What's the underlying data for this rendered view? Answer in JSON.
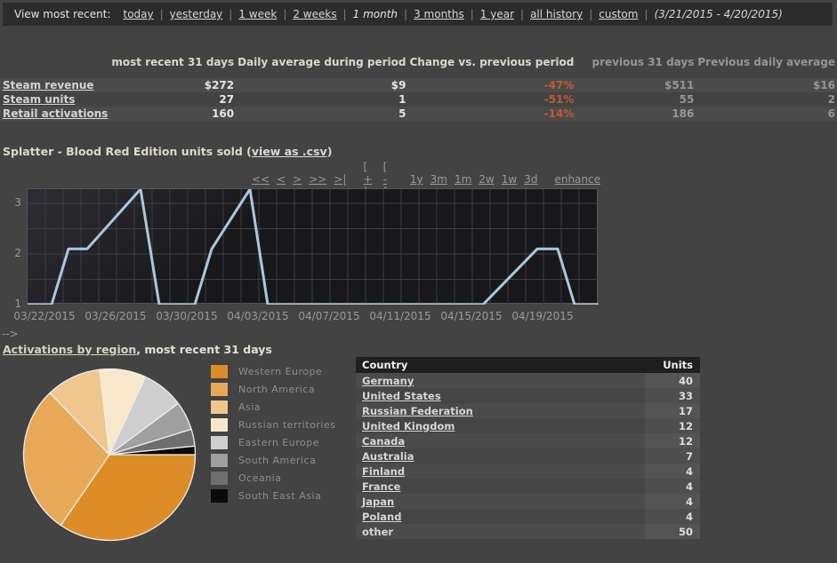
{
  "topbar": {
    "label": "View most recent:",
    "links": [
      {
        "text": "today",
        "selected": false
      },
      {
        "text": "yesterday",
        "selected": false
      },
      {
        "text": "1 week",
        "selected": false
      },
      {
        "text": "2 weeks",
        "selected": false
      },
      {
        "text": "1 month",
        "selected": true
      },
      {
        "text": "3 months",
        "selected": false
      },
      {
        "text": "1 year",
        "selected": false
      },
      {
        "text": "all history",
        "selected": false
      },
      {
        "text": "custom",
        "selected": false
      }
    ],
    "date_range": "(3/21/2015 - 4/20/2015)"
  },
  "summary_table": {
    "headers": [
      {
        "text": "most recent 31 days",
        "bright": true
      },
      {
        "text": "Daily average during period",
        "bright": true
      },
      {
        "text": "Change vs. previous period",
        "bright": true
      },
      {
        "text": "previous 31 days",
        "bright": false
      },
      {
        "text": "Previous daily average",
        "bright": false
      }
    ],
    "rows": [
      {
        "label": "Steam revenue",
        "values": [
          "$272",
          "$9",
          "-47%",
          "$511",
          "$16"
        ]
      },
      {
        "label": "Steam units",
        "values": [
          "27",
          "1",
          "-51%",
          "55",
          "2"
        ]
      },
      {
        "label": "Retail activations",
        "values": [
          "160",
          "5",
          "-14%",
          "186",
          "6"
        ]
      }
    ]
  },
  "chart_section": {
    "title_prefix": "Splatter - Blood Red Edition units sold (",
    "csv_link": "view as .csv",
    "title_suffix": ")",
    "control_groups": [
      [
        "<<",
        "<",
        ">",
        ">>",
        ">|"
      ],
      [
        "[ + ]",
        "[ - ]"
      ],
      [
        "1y",
        "3m",
        "1m",
        "2w",
        "1w",
        "3d"
      ],
      [
        "enhance"
      ]
    ]
  },
  "arrow_text": "-->",
  "regions_heading": {
    "link": "Activations by region",
    "suffix": ", most recent 31 days"
  },
  "chart_data": [
    {
      "type": "line",
      "title": "Splatter - Blood Red Edition units sold",
      "x_axis_note": "day 0 = 03/21/2015 at plot left edge, 20px per day",
      "x_tick_days": [
        1,
        5,
        9,
        13,
        17,
        21,
        25,
        29
      ],
      "x_tick_labels": [
        "03/22/2015",
        "03/26/2015",
        "03/30/2015",
        "04/03/2015",
        "04/07/2015",
        "04/11/2015",
        "04/15/2015",
        "04/19/2015"
      ],
      "y_ticks": [
        1,
        2,
        3
      ],
      "ylim": [
        1,
        3.28
      ],
      "xlim_days": [
        0,
        32.1
      ],
      "grid_y_step": 0.5,
      "points": [
        [
          0,
          1
        ],
        [
          1.35,
          1
        ],
        [
          2.3,
          2.1
        ],
        [
          3.35,
          2.1
        ],
        [
          6.35,
          3.28
        ],
        [
          7.4,
          1
        ],
        [
          9.4,
          1
        ],
        [
          10.35,
          2.1
        ],
        [
          12.5,
          3.28
        ],
        [
          13.5,
          1
        ],
        [
          25.6,
          1
        ],
        [
          28.65,
          2.1
        ],
        [
          29.8,
          2.1
        ],
        [
          30.75,
          1
        ],
        [
          32.1,
          1
        ]
      ],
      "line_color": "#a9c8dd"
    },
    {
      "type": "pie",
      "title": "Activations by region, most recent 31 days",
      "start_angle_deg_clockwise_from_3oclock": 0,
      "slices": [
        {
          "label": "Western Europe",
          "percent": 34.6,
          "color": "#dd8c28"
        },
        {
          "label": "North America",
          "percent": 28.2,
          "color": "#e7a958"
        },
        {
          "label": "Asia",
          "percent": 10.4,
          "color": "#efc68e"
        },
        {
          "label": "Russian territories",
          "percent": 8.7,
          "color": "#f8e8cb"
        },
        {
          "label": "Eastern Europe",
          "percent": 7.9,
          "color": "#cecece"
        },
        {
          "label": "South America",
          "percent": 5.4,
          "color": "#9f9f9f"
        },
        {
          "label": "Oceania",
          "percent": 3.2,
          "color": "#6f6f6f"
        },
        {
          "label": "South East Asia",
          "percent": 1.6,
          "color": "#0a0a0a"
        }
      ]
    }
  ],
  "country_table": {
    "headers": [
      "Country",
      "Units"
    ],
    "rows": [
      {
        "country": "Germany",
        "units": 40,
        "link": true
      },
      {
        "country": "United States",
        "units": 33,
        "link": true
      },
      {
        "country": "Russian Federation",
        "units": 17,
        "link": true
      },
      {
        "country": "United Kingdom",
        "units": 12,
        "link": true
      },
      {
        "country": "Canada",
        "units": 12,
        "link": true
      },
      {
        "country": "Australia",
        "units": 7,
        "link": true
      },
      {
        "country": "Finland",
        "units": 4,
        "link": true
      },
      {
        "country": "France",
        "units": 4,
        "link": true
      },
      {
        "country": "Japan",
        "units": 4,
        "link": true
      },
      {
        "country": "Poland",
        "units": 4,
        "link": true
      },
      {
        "country": "other",
        "units": 50,
        "link": false
      }
    ]
  },
  "colors": {
    "page_bg": "#434343",
    "topbar_bg": "#2c2c2c",
    "negative_change": "#c25a30",
    "plot_bg": "#18181b",
    "plot_grid": "#3c3c43",
    "line": "#a9c8dd",
    "table_header_bg": "#1f1f1f"
  }
}
